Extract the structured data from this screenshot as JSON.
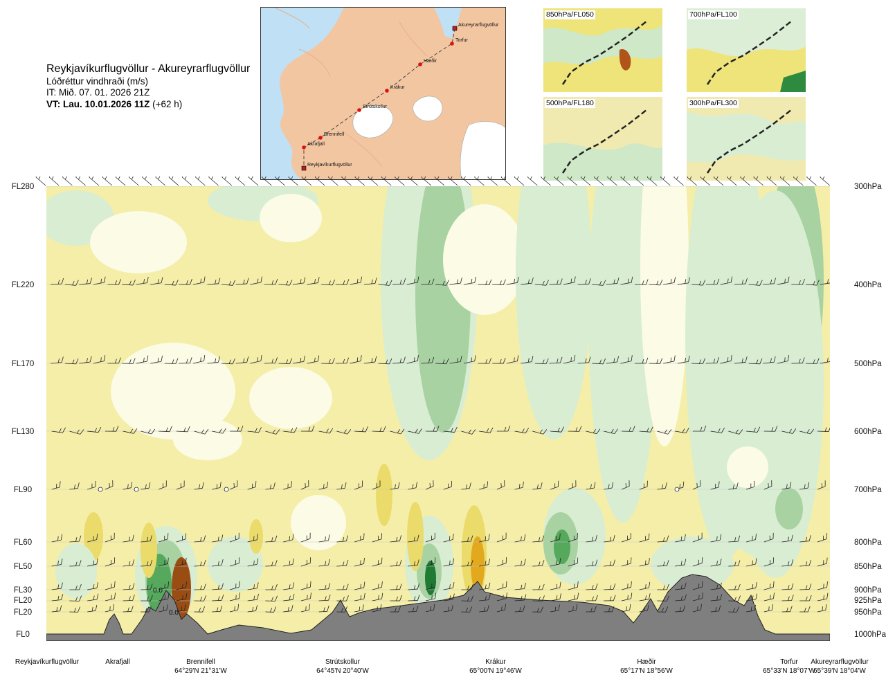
{
  "header": {
    "title": "Reykjavíkurflugvöllur - Akureyrarflugvöllur",
    "subtitle": "Lóðréttur vindhraði (m/s)",
    "issue_time": "IT: Mið. 07. 01. 2026 21Z",
    "valid_label": "VT: Lau. 10.01.2026 11Z",
    "valid_offset": "(+62 h)"
  },
  "route_map": {
    "waypoints": [
      {
        "name": "Akureyrarflugvöllur",
        "type": "airport"
      },
      {
        "name": "Torfur",
        "type": "point"
      },
      {
        "name": "Hæðir",
        "type": "point"
      },
      {
        "name": "Krákur",
        "type": "point"
      },
      {
        "name": "Strútskollur",
        "type": "point"
      },
      {
        "name": "Brennifell",
        "type": "point"
      },
      {
        "name": "Akrafjall",
        "type": "point"
      },
      {
        "name": "Reykjavíkurflugvöllur",
        "type": "airport"
      }
    ]
  },
  "thumbnails": [
    {
      "label": "850hPa/FL050"
    },
    {
      "label": "700hPa/FL100"
    },
    {
      "label": "500hPa/FL180"
    },
    {
      "label": "300hPa/FL300"
    }
  ],
  "chart_data": {
    "type": "heatmap",
    "title": "Reykjavíkurflugvöllur - Akureyrarflugvöllur",
    "subtitle": "Lóðréttur vindhraði (m/s)",
    "x_axis_points": [
      {
        "name": "Reykjavíkurflugvöllur",
        "coord": ""
      },
      {
        "name": "Akrafjall",
        "coord": ""
      },
      {
        "name": "Brennifell",
        "coord": "64°29'N 21°31'W"
      },
      {
        "name": "Strútskollur",
        "coord": "64°45'N 20°40'W"
      },
      {
        "name": "Krákur",
        "coord": "65°00'N 19°46'W"
      },
      {
        "name": "Hæðir",
        "coord": "65°17'N 18°56'W"
      },
      {
        "name": "Torfur",
        "coord": "65°33'N 18°07'W"
      },
      {
        "name": "Akureyrarflugvöllur",
        "coord": "65°39'N 18°04'W"
      }
    ],
    "y_levels": [
      {
        "fl": "FL280",
        "hpa": "300hPa",
        "p": 300
      },
      {
        "fl": "FL220",
        "hpa": "400hPa",
        "p": 400
      },
      {
        "fl": "FL170",
        "hpa": "500hPa",
        "p": 500
      },
      {
        "fl": "FL130",
        "hpa": "600hPa",
        "p": 600
      },
      {
        "fl": "FL90",
        "hpa": "700hPa",
        "p": 700
      },
      {
        "fl": "FL60",
        "hpa": "800hPa",
        "p": 800
      },
      {
        "fl": "FL50",
        "hpa": "850hPa",
        "p": 850
      },
      {
        "fl": "FL30",
        "hpa": "900hPa",
        "p": 900
      },
      {
        "fl": "FL20",
        "hpa": "925hPa",
        "p": 925
      },
      {
        "fl": "FL20",
        "hpa": "950hPa",
        "p": 950
      },
      {
        "fl": "FL0",
        "hpa": "1000hPa",
        "p": 1000
      }
    ],
    "ylim_hpa": [
      300,
      1000
    ],
    "contour_labels": [
      "0.0",
      "0.0"
    ],
    "palette": {
      "weak_down": "#f5eea8",
      "down": "#eadb6a",
      "strong_down": "#e2a81e",
      "very_strong_down": "#9a4d12",
      "neutral": "#fbfbe6",
      "weak_up": "#d8edd2",
      "up": "#a8d2a2",
      "strong_up": "#55a85c",
      "very_strong_up": "#1f7a34",
      "terrain": "#7f7f7f"
    }
  }
}
